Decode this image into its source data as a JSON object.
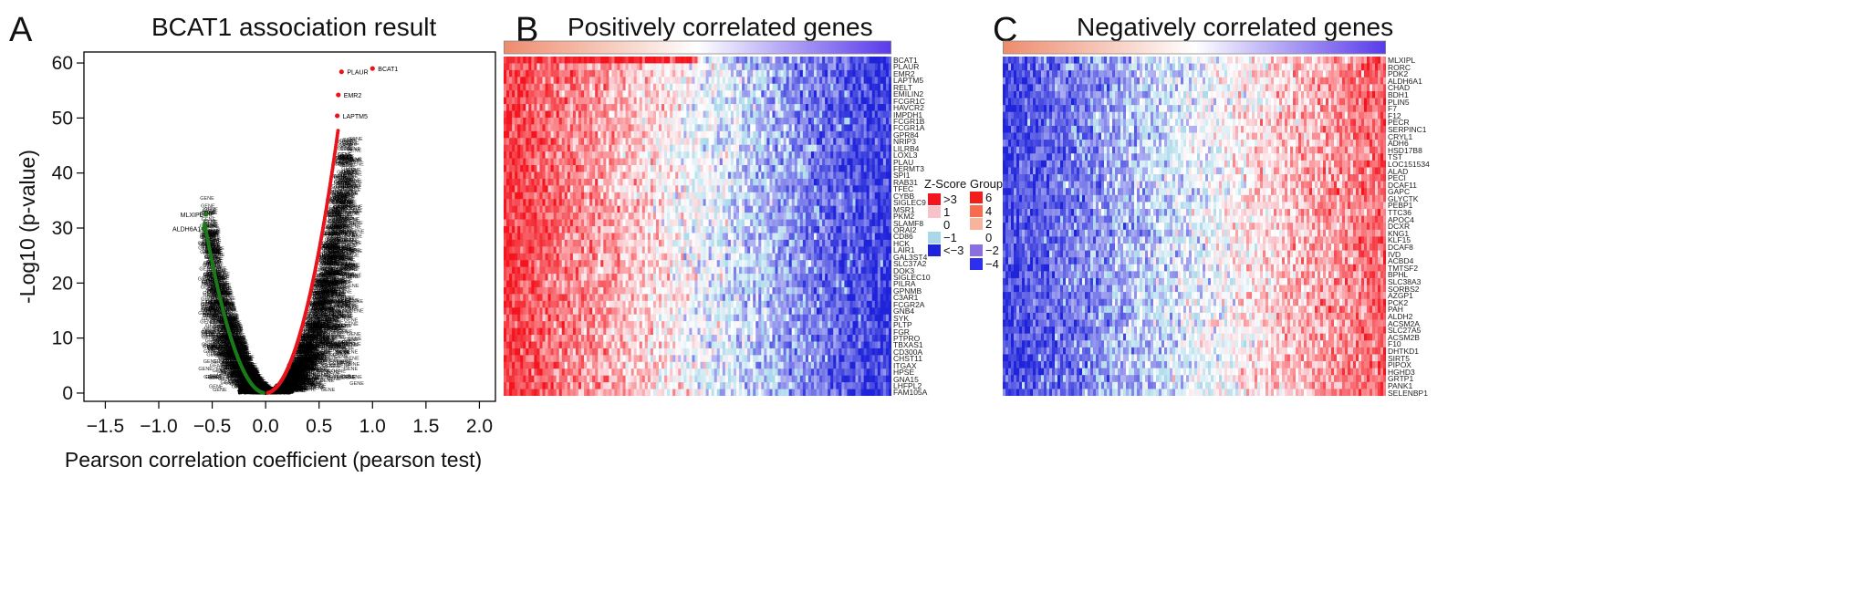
{
  "panels": {
    "a": {
      "letter": "A",
      "title": "BCAT1 association result"
    },
    "b": {
      "letter": "B",
      "title": "Positively correlated genes"
    },
    "c": {
      "letter": "C",
      "title": "Negatively correlated genes"
    }
  },
  "legend": {
    "zscore_title": "Z-Score",
    "group_title": "Group",
    "zscore_items": [
      {
        "label": ">3",
        "color": "#f3141e"
      },
      {
        "label": "1",
        "color": "#f7c2c9"
      },
      {
        "label": "0",
        "color": "#ffffff"
      },
      {
        "label": "−1",
        "color": "#a8d8ea"
      },
      {
        "label": "<−3",
        "color": "#1f23d9"
      }
    ],
    "group_items": [
      {
        "label": "6",
        "color": "#f21e1a"
      },
      {
        "label": "4",
        "color": "#f76c4c"
      },
      {
        "label": "2",
        "color": "#f7b39b"
      },
      {
        "label": "0",
        "color": "#ffffff"
      },
      {
        "label": "−2",
        "color": "#8a6fe0"
      },
      {
        "label": "−4",
        "color": "#2c2ff0"
      }
    ]
  },
  "chart_data": [
    {
      "type": "scatter",
      "title": "BCAT1 association result",
      "xlabel": "Pearson correlation coefficient (pearson test)",
      "ylabel": "-Log10 (p-value)",
      "xlim": [
        -1.7,
        2.15
      ],
      "ylim": [
        -1.5,
        62
      ],
      "xticks": [
        "−1.5",
        "−1.0",
        "−0.5",
        "0.0",
        "0.5",
        "1.0",
        "1.5",
        "2.0"
      ],
      "yticks": [
        "0",
        "10",
        "20",
        "30",
        "40",
        "50",
        "60"
      ],
      "grid": false,
      "colors": {
        "positive": "#e8131b",
        "negative": "#1a7a1a",
        "other": "#000000"
      },
      "labeled_points": [
        {
          "label": "BCAT1",
          "x": 1.0,
          "y": 59.0
        },
        {
          "label": "PLAUR",
          "x": 0.71,
          "y": 58.4
        },
        {
          "label": "EMR2",
          "x": 0.68,
          "y": 54.2
        },
        {
          "label": "LAPTM5",
          "x": 0.67,
          "y": 50.4
        },
        {
          "label": "MLXIPL",
          "x": -0.56,
          "y": 32.5
        },
        {
          "label": "ALDH6A1",
          "x": -0.58,
          "y": 29.9
        }
      ]
    },
    {
      "type": "heatmap",
      "title": "Positively correlated genes",
      "rows": [
        "BCAT1",
        "PLAUR",
        "EMR2",
        "LAPTM5",
        "RELT",
        "EMILIN2",
        "FCGR1C",
        "HAVCR2",
        "IMPDH1",
        "FCGR1B",
        "FCGR1A",
        "GPR84",
        "NRIP3",
        "LILRB4",
        "LOXL3",
        "PLAU",
        "FERMT3",
        "SPI1",
        "RAB31",
        "TFEC",
        "CYBB",
        "SIGLEC9",
        "MSR1",
        "PKM2",
        "SLAMF8",
        "ORAI2",
        "CD86",
        "HCK",
        "LAIR1",
        "GAL3ST4",
        "SLC37A2",
        "DOK3",
        "SIGLEC10",
        "PILRA",
        "GPNMB",
        "C3AR1",
        "FCGR2A",
        "GNB4",
        "SYK",
        "PLTP",
        "FGR",
        "PTPRO",
        "TBXAS1",
        "CD300A",
        "CHST11",
        "ITGAX",
        "HPSE",
        "GNA15",
        "LHFPL2",
        "FAM105A"
      ],
      "zscore_range": [
        -3,
        3
      ],
      "group_range": [
        6,
        -4
      ]
    },
    {
      "type": "heatmap",
      "title": "Negatively correlated genes",
      "rows": [
        "MLXIPL",
        "RORC",
        "PDK2",
        "ALDH6A1",
        "CHAD",
        "BDH1",
        "PLIN5",
        "F7",
        "F12",
        "PECR",
        "SERPINC1",
        "CRYL1",
        "ADH6",
        "HSD17B8",
        "TST",
        "LOC151534",
        "ALAD",
        "PECI",
        "DCAF11",
        "GAPC",
        "GLYCTK",
        "PEBP1",
        "TTC36",
        "APOC4",
        "DCXR",
        "KNG1",
        "KLF15",
        "DCAF8",
        "IVD",
        "ACBD4",
        "TMTSF2",
        "BPHL",
        "SLC38A3",
        "SORBS2",
        "AZGP1",
        "PCK2",
        "PAH",
        "ALDH2",
        "ACSM2A",
        "SLC27A5",
        "ACSM2B",
        "F10",
        "DHTKD1",
        "SIRT5",
        "PIPOX",
        "HGHD3",
        "GRTP1",
        "PANK1",
        "SELENBP1"
      ],
      "zscore_range": [
        -3,
        3
      ],
      "group_range": [
        6,
        -4
      ]
    }
  ]
}
